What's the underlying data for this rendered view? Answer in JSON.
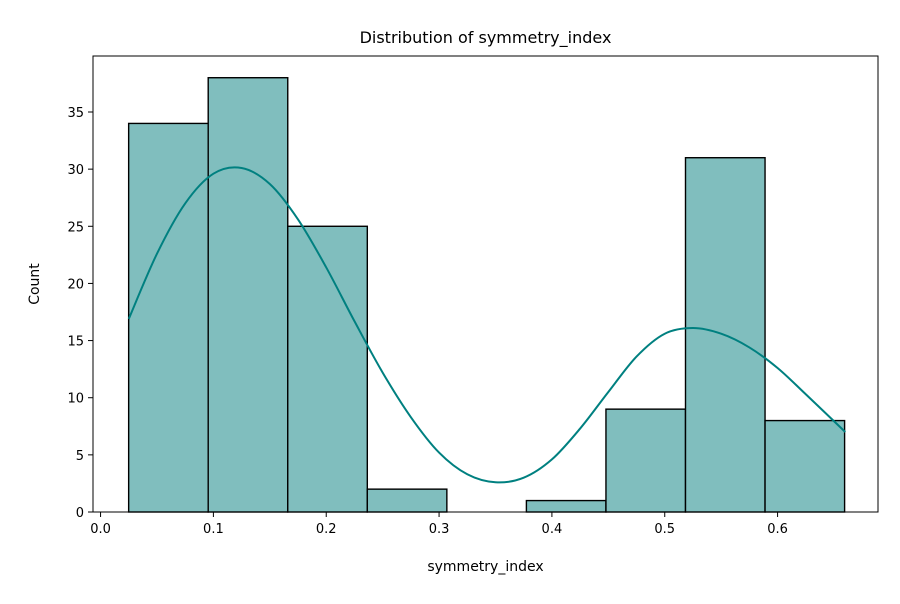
{
  "chart_data": {
    "type": "bar",
    "title": "Distribution of symmetry_index",
    "xlabel": "symmetry_index",
    "ylabel": "Count",
    "xlim": [
      -0.0067,
      0.689
    ],
    "ylim": [
      0,
      39.9
    ],
    "xticks": [
      0.0,
      0.1,
      0.2,
      0.3,
      0.4,
      0.5,
      0.6
    ],
    "xtick_labels": [
      "0.0",
      "0.1",
      "0.2",
      "0.3",
      "0.4",
      "0.5",
      "0.6"
    ],
    "yticks": [
      0,
      5,
      10,
      15,
      20,
      25,
      30,
      35
    ],
    "ytick_labels": [
      "0",
      "5",
      "10",
      "15",
      "20",
      "25",
      "30",
      "35"
    ],
    "bin_edges": [
      0.0249,
      0.0954,
      0.1659,
      0.2364,
      0.3069,
      0.3774,
      0.4479,
      0.5184,
      0.5889,
      0.6594
    ],
    "counts": [
      34,
      38,
      25,
      2,
      0,
      1,
      9,
      31,
      8
    ],
    "kde": {
      "x": [
        0.025,
        0.05,
        0.075,
        0.1,
        0.125,
        0.15,
        0.175,
        0.2,
        0.225,
        0.25,
        0.275,
        0.3,
        0.325,
        0.35,
        0.375,
        0.4,
        0.425,
        0.45,
        0.475,
        0.5,
        0.525,
        0.55,
        0.575,
        0.6,
        0.625,
        0.66
      ],
      "y": [
        16.9,
        22.6,
        27.0,
        29.6,
        30.1,
        28.7,
        25.6,
        21.4,
        16.7,
        12.2,
        8.3,
        5.2,
        3.3,
        2.6,
        3.0,
        4.6,
        7.3,
        10.5,
        13.6,
        15.6,
        16.1,
        15.6,
        14.4,
        12.6,
        10.3,
        7.0
      ]
    },
    "grid": false,
    "colors": {
      "bar_fill": "#80bebe",
      "bar_edge": "#000000",
      "kde_line": "#008080"
    }
  }
}
